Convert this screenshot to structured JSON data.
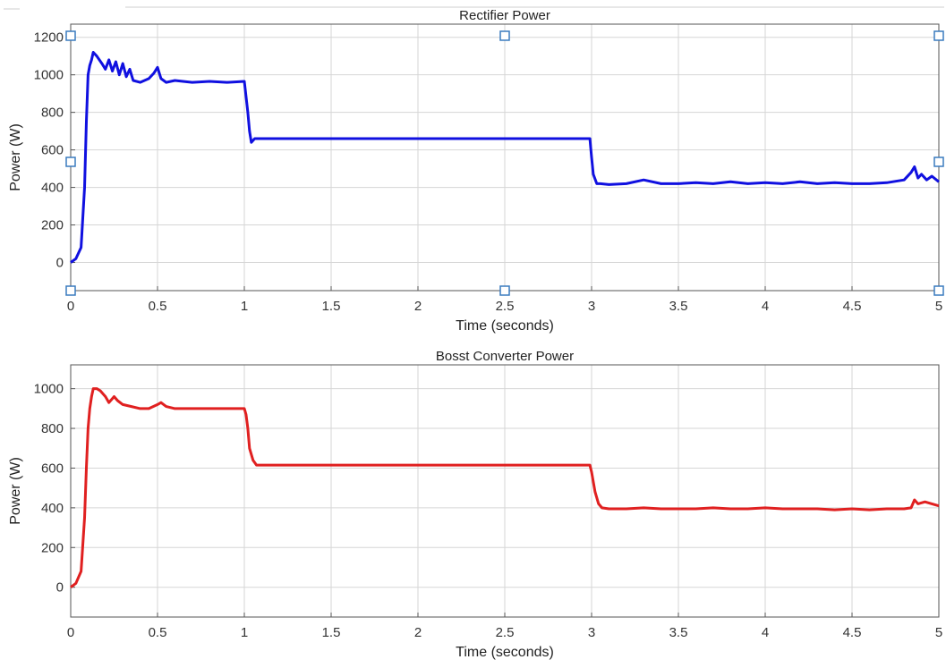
{
  "chart_data": [
    {
      "type": "line",
      "title": "Rectifier Power",
      "xlabel": "Time (seconds)",
      "ylabel": "Power (W)",
      "xlim": [
        0,
        5
      ],
      "ylim": [
        -150,
        1270
      ],
      "xticks": [
        "0",
        "0.5",
        "1",
        "1.5",
        "2",
        "2.5",
        "3",
        "3.5",
        "4",
        "4.5",
        "5"
      ],
      "yticks": [
        "0",
        "200",
        "400",
        "600",
        "800",
        "1000",
        "1200"
      ],
      "grid": true,
      "selection_handles": true,
      "series": [
        {
          "color": "#1010e0",
          "x": [
            0,
            0.03,
            0.06,
            0.08,
            0.09,
            0.1,
            0.11,
            0.12,
            0.13,
            0.15,
            0.18,
            0.2,
            0.22,
            0.24,
            0.26,
            0.28,
            0.3,
            0.32,
            0.34,
            0.36,
            0.4,
            0.45,
            0.48,
            0.5,
            0.52,
            0.55,
            0.6,
            0.7,
            0.8,
            0.9,
            1.0,
            1.02,
            1.03,
            1.04,
            1.06,
            1.1,
            1.5,
            2.0,
            2.5,
            2.99,
            3.0,
            3.01,
            3.03,
            3.05,
            3.1,
            3.2,
            3.3,
            3.4,
            3.5,
            3.6,
            3.7,
            3.8,
            3.9,
            4.0,
            4.1,
            4.2,
            4.3,
            4.4,
            4.5,
            4.6,
            4.7,
            4.8,
            4.84,
            4.86,
            4.88,
            4.9,
            4.93,
            4.96,
            5.0
          ],
          "y": [
            0,
            20,
            80,
            400,
            750,
            1000,
            1050,
            1080,
            1120,
            1100,
            1060,
            1030,
            1080,
            1020,
            1070,
            1000,
            1060,
            990,
            1030,
            970,
            960,
            980,
            1010,
            1040,
            980,
            960,
            970,
            960,
            965,
            960,
            965,
            800,
            700,
            640,
            660,
            660,
            660,
            660,
            660,
            660,
            560,
            470,
            420,
            420,
            415,
            420,
            440,
            420,
            420,
            425,
            420,
            430,
            420,
            425,
            420,
            430,
            420,
            425,
            420,
            420,
            425,
            440,
            480,
            510,
            450,
            470,
            440,
            460,
            430
          ]
        }
      ]
    },
    {
      "type": "line",
      "title": "Bosst Converter Power",
      "xlabel": "Time (seconds)",
      "ylabel": "Power (W)",
      "xlim": [
        0,
        5
      ],
      "ylim": [
        -150,
        1120
      ],
      "xticks": [
        "0",
        "0.5",
        "1",
        "1.5",
        "2",
        "2.5",
        "3",
        "3.5",
        "4",
        "4.5",
        "5"
      ],
      "yticks": [
        "0",
        "200",
        "400",
        "600",
        "800",
        "1000"
      ],
      "grid": true,
      "series": [
        {
          "color": "#e02020",
          "x": [
            0,
            0.03,
            0.06,
            0.08,
            0.09,
            0.1,
            0.11,
            0.12,
            0.13,
            0.15,
            0.17,
            0.2,
            0.22,
            0.25,
            0.27,
            0.3,
            0.35,
            0.4,
            0.45,
            0.5,
            0.52,
            0.55,
            0.6,
            0.7,
            0.8,
            0.9,
            1.0,
            1.01,
            1.02,
            1.03,
            1.05,
            1.07,
            1.1,
            1.5,
            2.0,
            2.5,
            2.99,
            3.0,
            3.02,
            3.04,
            3.06,
            3.1,
            3.2,
            3.3,
            3.4,
            3.5,
            3.6,
            3.7,
            3.8,
            3.9,
            4.0,
            4.1,
            4.2,
            4.3,
            4.4,
            4.5,
            4.6,
            4.7,
            4.8,
            4.84,
            4.86,
            4.88,
            4.92,
            4.96,
            5.0
          ],
          "y": [
            0,
            20,
            80,
            350,
            600,
            800,
            900,
            960,
            1000,
            1000,
            990,
            960,
            930,
            960,
            940,
            920,
            910,
            900,
            900,
            920,
            930,
            910,
            900,
            900,
            900,
            900,
            900,
            870,
            800,
            700,
            640,
            615,
            615,
            615,
            615,
            615,
            615,
            580,
            480,
            420,
            400,
            395,
            395,
            400,
            395,
            395,
            395,
            400,
            395,
            395,
            400,
            395,
            395,
            395,
            390,
            395,
            390,
            395,
            395,
            400,
            440,
            420,
            430,
            420,
            410
          ]
        }
      ]
    }
  ]
}
